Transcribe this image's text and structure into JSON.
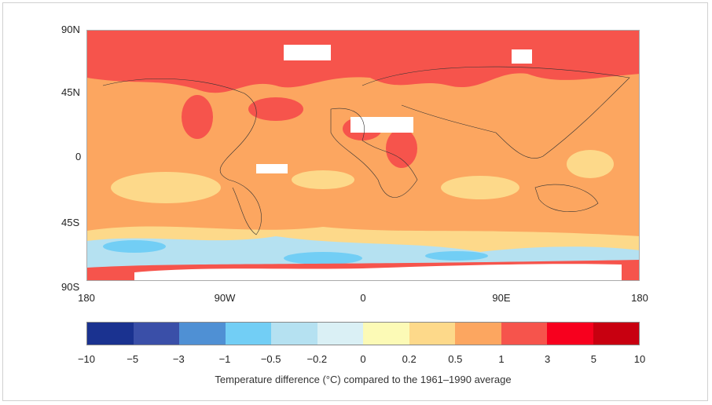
{
  "map": {
    "lat_labels": [
      "90N",
      "45N",
      "0",
      "45S",
      "90S"
    ],
    "lon_labels": [
      "180",
      "90W",
      "0",
      "90E",
      "180"
    ]
  },
  "colorbar": {
    "ticks": [
      "−10",
      "−5",
      "−3",
      "−1",
      "−0.5",
      "−0.2",
      "0",
      "0.2",
      "0.5",
      "1",
      "3",
      "5",
      "10"
    ],
    "colors": [
      "#1a3290",
      "#3a4fa8",
      "#4f90d4",
      "#72cef5",
      "#b5e1f1",
      "#daf0f5",
      "#fcfab6",
      "#fdd98a",
      "#fca660",
      "#f6544c",
      "#f7001e",
      "#c80010"
    ],
    "caption": "Temperature difference (°C) compared to the 1961–1990 average"
  }
}
